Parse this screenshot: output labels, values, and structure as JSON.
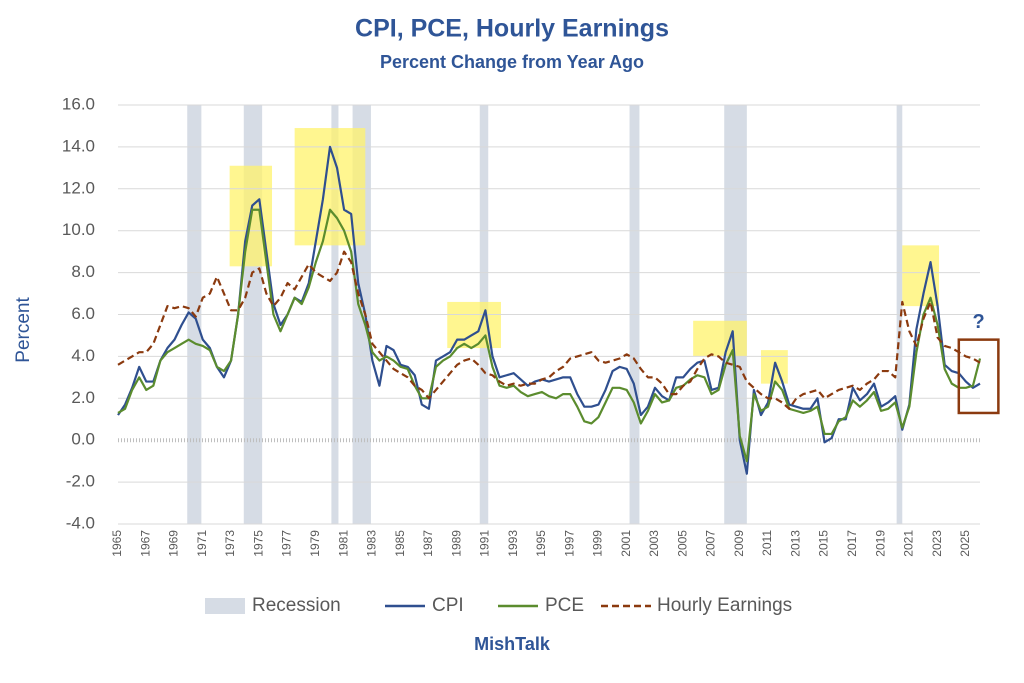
{
  "chart_data": {
    "type": "line",
    "title": "CPI, PCE, Hourly Earnings",
    "subtitle": "Percent Change from Year Ago",
    "y_label": "Percent",
    "source": "MishTalk",
    "xlim": [
      1965,
      2026
    ],
    "xticks": [
      1965,
      1967,
      1969,
      1971,
      1973,
      1975,
      1977,
      1979,
      1981,
      1983,
      1985,
      1987,
      1989,
      1991,
      1993,
      1995,
      1997,
      1999,
      2001,
      2003,
      2005,
      2007,
      2009,
      2011,
      2013,
      2015,
      2017,
      2019,
      2021,
      2023,
      2025
    ],
    "ylim": [
      -4,
      16
    ],
    "yticks": [
      {
        "value": -4,
        "label": "-4.0"
      },
      {
        "value": -2,
        "label": "-2.0"
      },
      {
        "value": 0,
        "label": "0.0"
      },
      {
        "value": 2,
        "label": "2.0"
      },
      {
        "value": 4,
        "label": "4.0"
      },
      {
        "value": 6,
        "label": "6.0"
      },
      {
        "value": 8,
        "label": "8.0"
      },
      {
        "value": 10,
        "label": "10.0"
      },
      {
        "value": 12,
        "label": "12.0"
      },
      {
        "value": 14,
        "label": "14.0"
      },
      {
        "value": 16,
        "label": "16.0"
      }
    ],
    "grid": true,
    "legend": "bottom",
    "recession_name": "Recession",
    "recession_color": "#d6dce5",
    "recessions": [
      [
        1969.9,
        1970.9
      ],
      [
        1973.9,
        1975.2
      ],
      [
        1980.1,
        1980.6
      ],
      [
        1981.6,
        1982.9
      ],
      [
        1990.6,
        1991.2
      ],
      [
        2001.2,
        2001.9
      ],
      [
        2007.9,
        2009.5
      ],
      [
        2020.1,
        2020.5
      ]
    ],
    "highlight_color": "#fff36b",
    "highlights": [
      {
        "x": [
          1972.9,
          1975.9
        ],
        "y": [
          8.3,
          13.1
        ]
      },
      {
        "x": [
          1977.5,
          1982.5
        ],
        "y": [
          9.3,
          14.9
        ]
      },
      {
        "x": [
          1988.3,
          1992.1
        ],
        "y": [
          4.4,
          6.6
        ]
      },
      {
        "x": [
          2005.7,
          2009.5
        ],
        "y": [
          4.0,
          5.7
        ]
      },
      {
        "x": [
          2010.5,
          2012.4
        ],
        "y": [
          2.7,
          4.3
        ]
      },
      {
        "x": [
          2020.5,
          2023.1
        ],
        "y": [
          6.4,
          9.3
        ]
      }
    ],
    "annotation": {
      "text": "?",
      "x": 2025.9,
      "y": 5.6,
      "box_x": [
        2024.5,
        2027.3
      ],
      "box_y": [
        1.3,
        4.8
      ],
      "color": "#8b3a0f"
    },
    "x": [
      1965.0,
      1965.5,
      1966.0,
      1966.5,
      1967.0,
      1967.5,
      1968.0,
      1968.5,
      1969.0,
      1969.5,
      1970.0,
      1970.5,
      1971.0,
      1971.5,
      1972.0,
      1972.5,
      1973.0,
      1973.5,
      1974.0,
      1974.5,
      1975.0,
      1975.5,
      1976.0,
      1976.5,
      1977.0,
      1977.5,
      1978.0,
      1978.5,
      1979.0,
      1979.5,
      1980.0,
      1980.5,
      1981.0,
      1981.5,
      1982.0,
      1982.5,
      1983.0,
      1983.5,
      1984.0,
      1984.5,
      1985.0,
      1985.5,
      1986.0,
      1986.5,
      1987.0,
      1987.5,
      1988.0,
      1988.5,
      1989.0,
      1989.5,
      1990.0,
      1990.5,
      1991.0,
      1991.5,
      1992.0,
      1992.5,
      1993.0,
      1993.5,
      1994.0,
      1994.5,
      1995.0,
      1995.5,
      1996.0,
      1996.5,
      1997.0,
      1997.5,
      1998.0,
      1998.5,
      1999.0,
      1999.5,
      2000.0,
      2000.5,
      2001.0,
      2001.5,
      2002.0,
      2002.5,
      2003.0,
      2003.5,
      2004.0,
      2004.5,
      2005.0,
      2005.5,
      2006.0,
      2006.5,
      2007.0,
      2007.5,
      2008.0,
      2008.5,
      2009.0,
      2009.5,
      2010.0,
      2010.5,
      2011.0,
      2011.5,
      2012.0,
      2012.5,
      2013.0,
      2013.5,
      2014.0,
      2014.5,
      2015.0,
      2015.5,
      2016.0,
      2016.5,
      2017.0,
      2017.5,
      2018.0,
      2018.5,
      2019.0,
      2019.5,
      2020.0,
      2020.5,
      2021.0,
      2021.5,
      2022.0,
      2022.5,
      2023.0,
      2023.5,
      2024.0,
      2024.5,
      2025.0,
      2025.5,
      2026.0
    ],
    "series": [
      {
        "name": "CPI",
        "color": "#2f4f8f",
        "dash": false,
        "values": [
          1.2,
          1.7,
          2.5,
          3.5,
          2.8,
          2.8,
          3.8,
          4.4,
          4.8,
          5.5,
          6.1,
          5.8,
          4.8,
          4.4,
          3.5,
          3.0,
          3.8,
          6.0,
          9.5,
          11.2,
          11.5,
          9.0,
          6.5,
          5.5,
          6.0,
          6.8,
          6.6,
          7.5,
          9.5,
          11.5,
          14.0,
          13.0,
          11.0,
          10.8,
          7.5,
          6.0,
          3.8,
          2.6,
          4.5,
          4.3,
          3.6,
          3.5,
          3.1,
          1.7,
          1.5,
          3.8,
          4.0,
          4.2,
          4.8,
          4.8,
          5.0,
          5.2,
          6.2,
          4.0,
          3.0,
          3.1,
          3.2,
          2.9,
          2.6,
          2.8,
          2.9,
          2.8,
          2.9,
          3.0,
          3.0,
          2.2,
          1.6,
          1.6,
          1.7,
          2.4,
          3.3,
          3.5,
          3.4,
          2.7,
          1.2,
          1.6,
          2.5,
          2.1,
          1.9,
          3.0,
          3.0,
          3.4,
          3.7,
          3.8,
          2.4,
          2.5,
          4.2,
          5.2,
          0.0,
          -1.6,
          2.4,
          1.2,
          1.8,
          3.7,
          2.8,
          1.7,
          1.6,
          1.5,
          1.5,
          2.0,
          -0.1,
          0.1,
          1.0,
          1.0,
          2.5,
          1.9,
          2.2,
          2.7,
          1.6,
          1.8,
          2.1,
          0.5,
          1.7,
          5.3,
          7.0,
          8.5,
          6.4,
          3.6,
          3.3,
          3.2,
          2.8,
          2.5,
          2.7
        ]
      },
      {
        "name": "PCE",
        "color": "#5b8c2e",
        "dash": false,
        "values": [
          1.3,
          1.5,
          2.4,
          3.0,
          2.4,
          2.6,
          3.8,
          4.2,
          4.4,
          4.6,
          4.8,
          4.6,
          4.5,
          4.3,
          3.5,
          3.3,
          3.8,
          6.0,
          9.0,
          11.0,
          11.0,
          8.5,
          6.0,
          5.2,
          6.0,
          6.8,
          6.5,
          7.3,
          8.5,
          9.5,
          11.0,
          10.6,
          10.0,
          9.0,
          6.5,
          5.5,
          4.2,
          3.8,
          4.0,
          3.8,
          3.5,
          3.4,
          2.6,
          2.0,
          2.0,
          3.5,
          3.8,
          4.0,
          4.4,
          4.6,
          4.4,
          4.6,
          5.0,
          3.5,
          2.6,
          2.5,
          2.6,
          2.3,
          2.1,
          2.2,
          2.3,
          2.1,
          2.0,
          2.2,
          2.2,
          1.6,
          0.9,
          0.8,
          1.1,
          1.8,
          2.5,
          2.5,
          2.4,
          1.8,
          0.8,
          1.4,
          2.2,
          1.8,
          1.9,
          2.5,
          2.6,
          2.9,
          3.1,
          3.0,
          2.2,
          2.4,
          3.6,
          4.3,
          0.2,
          -1.0,
          2.2,
          1.4,
          1.6,
          2.8,
          2.4,
          1.5,
          1.4,
          1.3,
          1.4,
          1.6,
          0.3,
          0.3,
          0.9,
          1.1,
          1.9,
          1.6,
          1.9,
          2.3,
          1.4,
          1.5,
          1.8,
          0.6,
          1.6,
          4.2,
          6.0,
          6.8,
          5.5,
          3.4,
          2.7,
          2.5,
          2.5,
          2.6,
          3.9
        ]
      },
      {
        "name": "Hourly Earnings",
        "color": "#8b3a0f",
        "dash": true,
        "values": [
          3.6,
          3.8,
          4.0,
          4.2,
          4.2,
          4.6,
          5.5,
          6.4,
          6.3,
          6.4,
          6.3,
          5.9,
          6.8,
          7.0,
          7.8,
          7.0,
          6.2,
          6.2,
          6.8,
          8.0,
          8.2,
          7.0,
          6.4,
          6.8,
          7.5,
          7.2,
          7.8,
          8.4,
          8.0,
          7.8,
          7.6,
          8.0,
          9.0,
          8.5,
          7.0,
          6.0,
          4.6,
          4.2,
          3.8,
          3.4,
          3.2,
          3.0,
          2.6,
          2.4,
          2.0,
          2.4,
          2.8,
          3.2,
          3.6,
          3.8,
          3.9,
          3.6,
          3.2,
          3.1,
          2.8,
          2.6,
          2.7,
          2.6,
          2.7,
          2.7,
          2.9,
          3.0,
          3.3,
          3.5,
          3.9,
          4.0,
          4.1,
          4.2,
          3.8,
          3.7,
          3.8,
          3.9,
          4.1,
          3.9,
          3.4,
          3.0,
          3.0,
          2.7,
          2.2,
          2.2,
          2.6,
          2.8,
          3.4,
          3.9,
          4.1,
          4.0,
          3.7,
          3.6,
          3.5,
          2.8,
          2.5,
          2.2,
          2.0,
          2.0,
          1.8,
          1.5,
          2.0,
          2.2,
          2.3,
          2.4,
          2.0,
          2.2,
          2.4,
          2.5,
          2.6,
          2.4,
          2.7,
          2.9,
          3.3,
          3.3,
          3.0,
          6.6,
          5.2,
          4.5,
          5.8,
          6.6,
          4.9,
          4.5,
          4.4,
          4.2,
          4.0,
          3.9,
          3.7
        ]
      }
    ]
  }
}
